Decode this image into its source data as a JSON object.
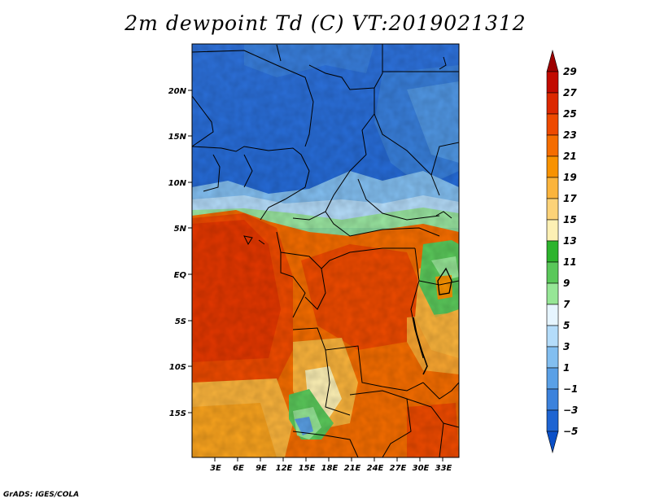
{
  "title": "2m dewpoint Td (C) VT:2019021312",
  "credit": "GrADS: IGES/COLA",
  "lat_labels": [
    "20N",
    "15N",
    "10N",
    "5N",
    "EQ",
    "5S",
    "10S",
    "15S"
  ],
  "lon_labels": [
    "3E",
    "6E",
    "9E",
    "12E",
    "15E",
    "18E",
    "21E",
    "24E",
    "27E",
    "30E",
    "33E"
  ],
  "colorbar": {
    "labels": [
      "29",
      "27",
      "25",
      "23",
      "21",
      "19",
      "17",
      "15",
      "13",
      "11",
      "9",
      "7",
      "5",
      "3",
      "1",
      "−1",
      "−3",
      "−5"
    ],
    "colors": [
      "#9e0000",
      "#c20a00",
      "#dc2800",
      "#ee4a00",
      "#f56d00",
      "#f89200",
      "#fbb43c",
      "#fcd278",
      "#fdf0b4",
      "#2db42d",
      "#5ac85a",
      "#96e696",
      "#e6f5ff",
      "#b4dcfa",
      "#82bef0",
      "#5aa0e6",
      "#3c82dc",
      "#1e64d2",
      "#0a50c8"
    ],
    "min": -5,
    "max": 29,
    "step": 2
  }
}
